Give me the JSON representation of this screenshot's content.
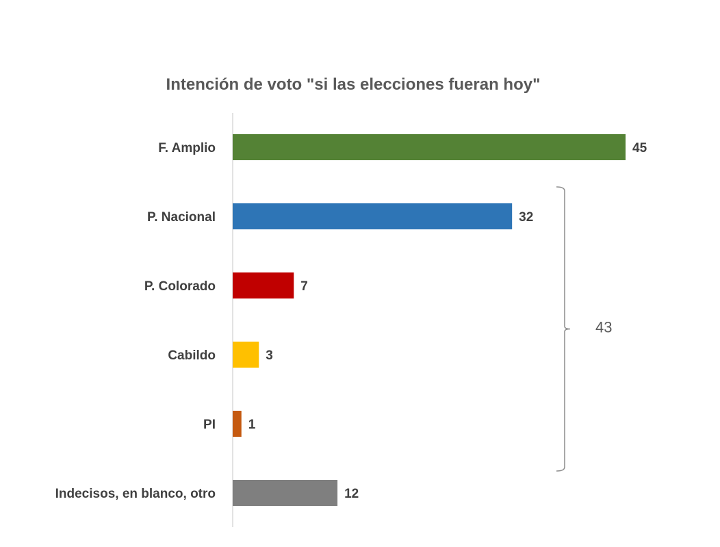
{
  "chart_data": {
    "type": "bar",
    "orientation": "horizontal",
    "title": "Intención de voto \"si las elecciones fueran hoy\"",
    "categories": [
      "F. Amplio",
      "P. Nacional",
      "P. Colorado",
      "Cabildo",
      "PI",
      "Indecisos, en blanco, otro"
    ],
    "values": [
      45,
      32,
      7,
      3,
      1,
      12
    ],
    "colors": [
      "#548235",
      "#2E75B6",
      "#C00000",
      "#FFC000",
      "#C55A11",
      "#7F7F7F"
    ],
    "xlabel": "",
    "ylabel": "",
    "xlim": [
      0,
      45
    ],
    "grid": false,
    "legend": "none",
    "annotations": [
      {
        "type": "bracket",
        "from_category": "P. Nacional",
        "to_category": "PI",
        "label": "43"
      }
    ]
  }
}
